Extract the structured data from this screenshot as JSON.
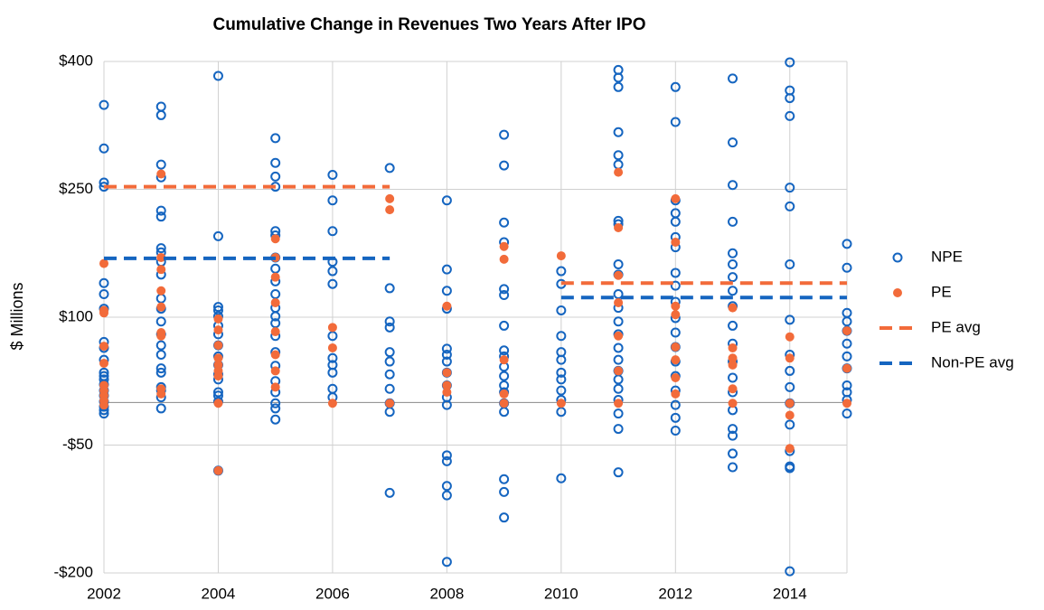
{
  "chart_data": {
    "type": "scatter",
    "title": "Cumulative Change in Revenues Two Years After IPO",
    "ylabel": "$ Millions",
    "xlim": [
      2002,
      2015
    ],
    "xticks": [
      2002,
      2004,
      2006,
      2008,
      2010,
      2012,
      2014
    ],
    "ylim": [
      -200,
      400
    ],
    "yticks": [
      {
        "value": -200,
        "label": "-$200"
      },
      {
        "value": -50,
        "label": "-$50"
      },
      {
        "value": 100,
        "label": "$100"
      },
      {
        "value": 250,
        "label": "$250"
      },
      {
        "value": 400,
        "label": "$400"
      }
    ],
    "grid": true,
    "legend": "right",
    "series": [
      {
        "name": "NPE",
        "color": "#1565c0",
        "mode": "markers",
        "filled": false,
        "x": [
          2002,
          2002,
          2002,
          2002,
          2002,
          2002,
          2002,
          2002,
          2002,
          2002,
          2002,
          2002,
          2002,
          2002,
          2002,
          2002,
          2002,
          2002,
          2002,
          2002,
          2003,
          2003,
          2003,
          2003,
          2003,
          2003,
          2003,
          2003,
          2003,
          2003,
          2003,
          2003,
          2003,
          2003,
          2003,
          2003,
          2003,
          2003,
          2003,
          2003,
          2003,
          2003,
          2004,
          2004,
          2004,
          2004,
          2004,
          2004,
          2004,
          2004,
          2004,
          2004,
          2004,
          2004,
          2004,
          2004,
          2004,
          2004,
          2005,
          2005,
          2005,
          2005,
          2005,
          2005,
          2005,
          2005,
          2005,
          2005,
          2005,
          2005,
          2005,
          2005,
          2005,
          2005,
          2005,
          2005,
          2005,
          2005,
          2005,
          2006,
          2006,
          2006,
          2006,
          2006,
          2006,
          2006,
          2006,
          2006,
          2006,
          2006,
          2006,
          2007,
          2007,
          2007,
          2007,
          2007,
          2007,
          2007,
          2007,
          2007,
          2007,
          2007,
          2008,
          2008,
          2008,
          2008,
          2008,
          2008,
          2008,
          2008,
          2008,
          2008,
          2008,
          2008,
          2008,
          2008,
          2008,
          2008,
          2009,
          2009,
          2009,
          2009,
          2009,
          2009,
          2009,
          2009,
          2009,
          2009,
          2009,
          2009,
          2009,
          2009,
          2009,
          2009,
          2009,
          2009,
          2010,
          2010,
          2010,
          2010,
          2010,
          2010,
          2010,
          2010,
          2010,
          2010,
          2010,
          2010,
          2011,
          2011,
          2011,
          2011,
          2011,
          2011,
          2011,
          2011,
          2011,
          2011,
          2011,
          2011,
          2011,
          2011,
          2011,
          2011,
          2011,
          2011,
          2011,
          2011,
          2011,
          2011,
          2011,
          2012,
          2012,
          2012,
          2012,
          2012,
          2012,
          2012,
          2012,
          2012,
          2012,
          2012,
          2012,
          2012,
          2012,
          2012,
          2012,
          2012,
          2012,
          2012,
          2013,
          2013,
          2013,
          2013,
          2013,
          2013,
          2013,
          2013,
          2013,
          2013,
          2013,
          2013,
          2013,
          2013,
          2013,
          2013,
          2013,
          2013,
          2013,
          2014,
          2014,
          2014,
          2014,
          2014,
          2014,
          2014,
          2014,
          2014,
          2014,
          2014,
          2014,
          2014,
          2014,
          2014,
          2014,
          2014,
          2015,
          2015,
          2015,
          2015,
          2015,
          2015,
          2015,
          2015,
          2015,
          2015,
          2015,
          2015
        ],
        "values": [
          349,
          298,
          258,
          253,
          140,
          127,
          110,
          71,
          64,
          50,
          35,
          31,
          27,
          21,
          14,
          8,
          1,
          -5,
          -9,
          -13,
          347,
          337,
          279,
          264,
          225,
          218,
          181,
          176,
          165,
          150,
          122,
          110,
          95,
          80,
          67,
          56,
          40,
          35,
          18,
          14,
          6,
          -7,
          383,
          195,
          112,
          108,
          101,
          90,
          80,
          67,
          54,
          44,
          33,
          27,
          12,
          8,
          1,
          -80,
          310,
          281,
          265,
          253,
          201,
          196,
          170,
          157,
          142,
          127,
          111,
          101,
          93,
          78,
          59,
          43,
          25,
          12,
          -1,
          -7,
          -20,
          267,
          237,
          201,
          165,
          154,
          139,
          78,
          52,
          44,
          35,
          16,
          6,
          275,
          134,
          95,
          88,
          59,
          48,
          33,
          16,
          -1,
          -11,
          -106,
          237,
          156,
          131,
          110,
          63,
          56,
          48,
          35,
          20,
          6,
          -3,
          -62,
          -69,
          -98,
          -109,
          -187,
          314,
          278,
          211,
          188,
          133,
          126,
          90,
          61,
          54,
          42,
          31,
          20,
          12,
          -1,
          -11,
          -90,
          -105,
          -135,
          154,
          139,
          108,
          78,
          59,
          50,
          35,
          27,
          14,
          3,
          -11,
          -89,
          390,
          381,
          370,
          317,
          290,
          279,
          213,
          209,
          162,
          150,
          127,
          111,
          95,
          80,
          64,
          50,
          37,
          27,
          16,
          3,
          -13,
          -31,
          -82,
          370,
          329,
          237,
          222,
          212,
          194,
          182,
          152,
          137,
          118,
          99,
          82,
          65,
          48,
          31,
          14,
          -3,
          -18,
          -33,
          380,
          305,
          255,
          212,
          175,
          162,
          147,
          131,
          113,
          90,
          69,
          48,
          29,
          12,
          -9,
          -31,
          -39,
          -60,
          -76,
          399,
          366,
          357,
          336,
          252,
          230,
          162,
          97,
          56,
          37,
          18,
          -1,
          -26,
          -57,
          -75,
          -77,
          -198,
          186,
          158,
          105,
          95,
          84,
          69,
          54,
          40,
          20,
          12,
          3,
          -13
        ]
      },
      {
        "name": "PE",
        "color": "#f26b3a",
        "mode": "markers",
        "filled": true,
        "x": [
          2002,
          2002,
          2002,
          2002,
          2002,
          2002,
          2002,
          2002,
          2002,
          2002,
          2003,
          2003,
          2003,
          2003,
          2003,
          2003,
          2003,
          2003,
          2003,
          2004,
          2004,
          2004,
          2004,
          2004,
          2004,
          2004,
          2004,
          2004,
          2005,
          2005,
          2005,
          2005,
          2005,
          2005,
          2005,
          2005,
          2006,
          2006,
          2006,
          2007,
          2007,
          2007,
          2008,
          2008,
          2008,
          2008,
          2009,
          2009,
          2009,
          2009,
          2009,
          2010,
          2010,
          2011,
          2011,
          2011,
          2011,
          2011,
          2011,
          2011,
          2012,
          2012,
          2012,
          2012,
          2012,
          2012,
          2012,
          2012,
          2013,
          2013,
          2013,
          2013,
          2013,
          2013,
          2014,
          2014,
          2014,
          2014,
          2014,
          2015,
          2015,
          2015
        ],
        "values": [
          163,
          108,
          105,
          66,
          46,
          20,
          14,
          8,
          2,
          -3,
          268,
          170,
          156,
          131,
          112,
          82,
          78,
          16,
          10,
          98,
          85,
          67,
          52,
          44,
          37,
          31,
          -1,
          -80,
          192,
          170,
          147,
          117,
          83,
          56,
          37,
          18,
          88,
          64,
          -1,
          239,
          226,
          -1,
          113,
          35,
          20,
          12,
          183,
          168,
          50,
          10,
          -1,
          172,
          -1,
          270,
          205,
          149,
          117,
          78,
          37,
          -1,
          239,
          188,
          113,
          103,
          65,
          50,
          29,
          10,
          111,
          64,
          52,
          44,
          16,
          -1,
          77,
          52,
          -1,
          -15,
          -54,
          84,
          40,
          -1
        ]
      },
      {
        "name": "PE avg",
        "color": "#f26b3a",
        "mode": "lines",
        "x": [
          2002,
          2007,
          2008,
          2010,
          2015
        ],
        "values": [
          253,
          253,
          null,
          140,
          140
        ]
      },
      {
        "name": "Non-PE avg",
        "color": "#1565c0",
        "mode": "lines",
        "x": [
          2002,
          2007,
          2008,
          2010,
          2015
        ],
        "values": [
          169,
          169,
          null,
          123,
          123
        ]
      }
    ]
  }
}
